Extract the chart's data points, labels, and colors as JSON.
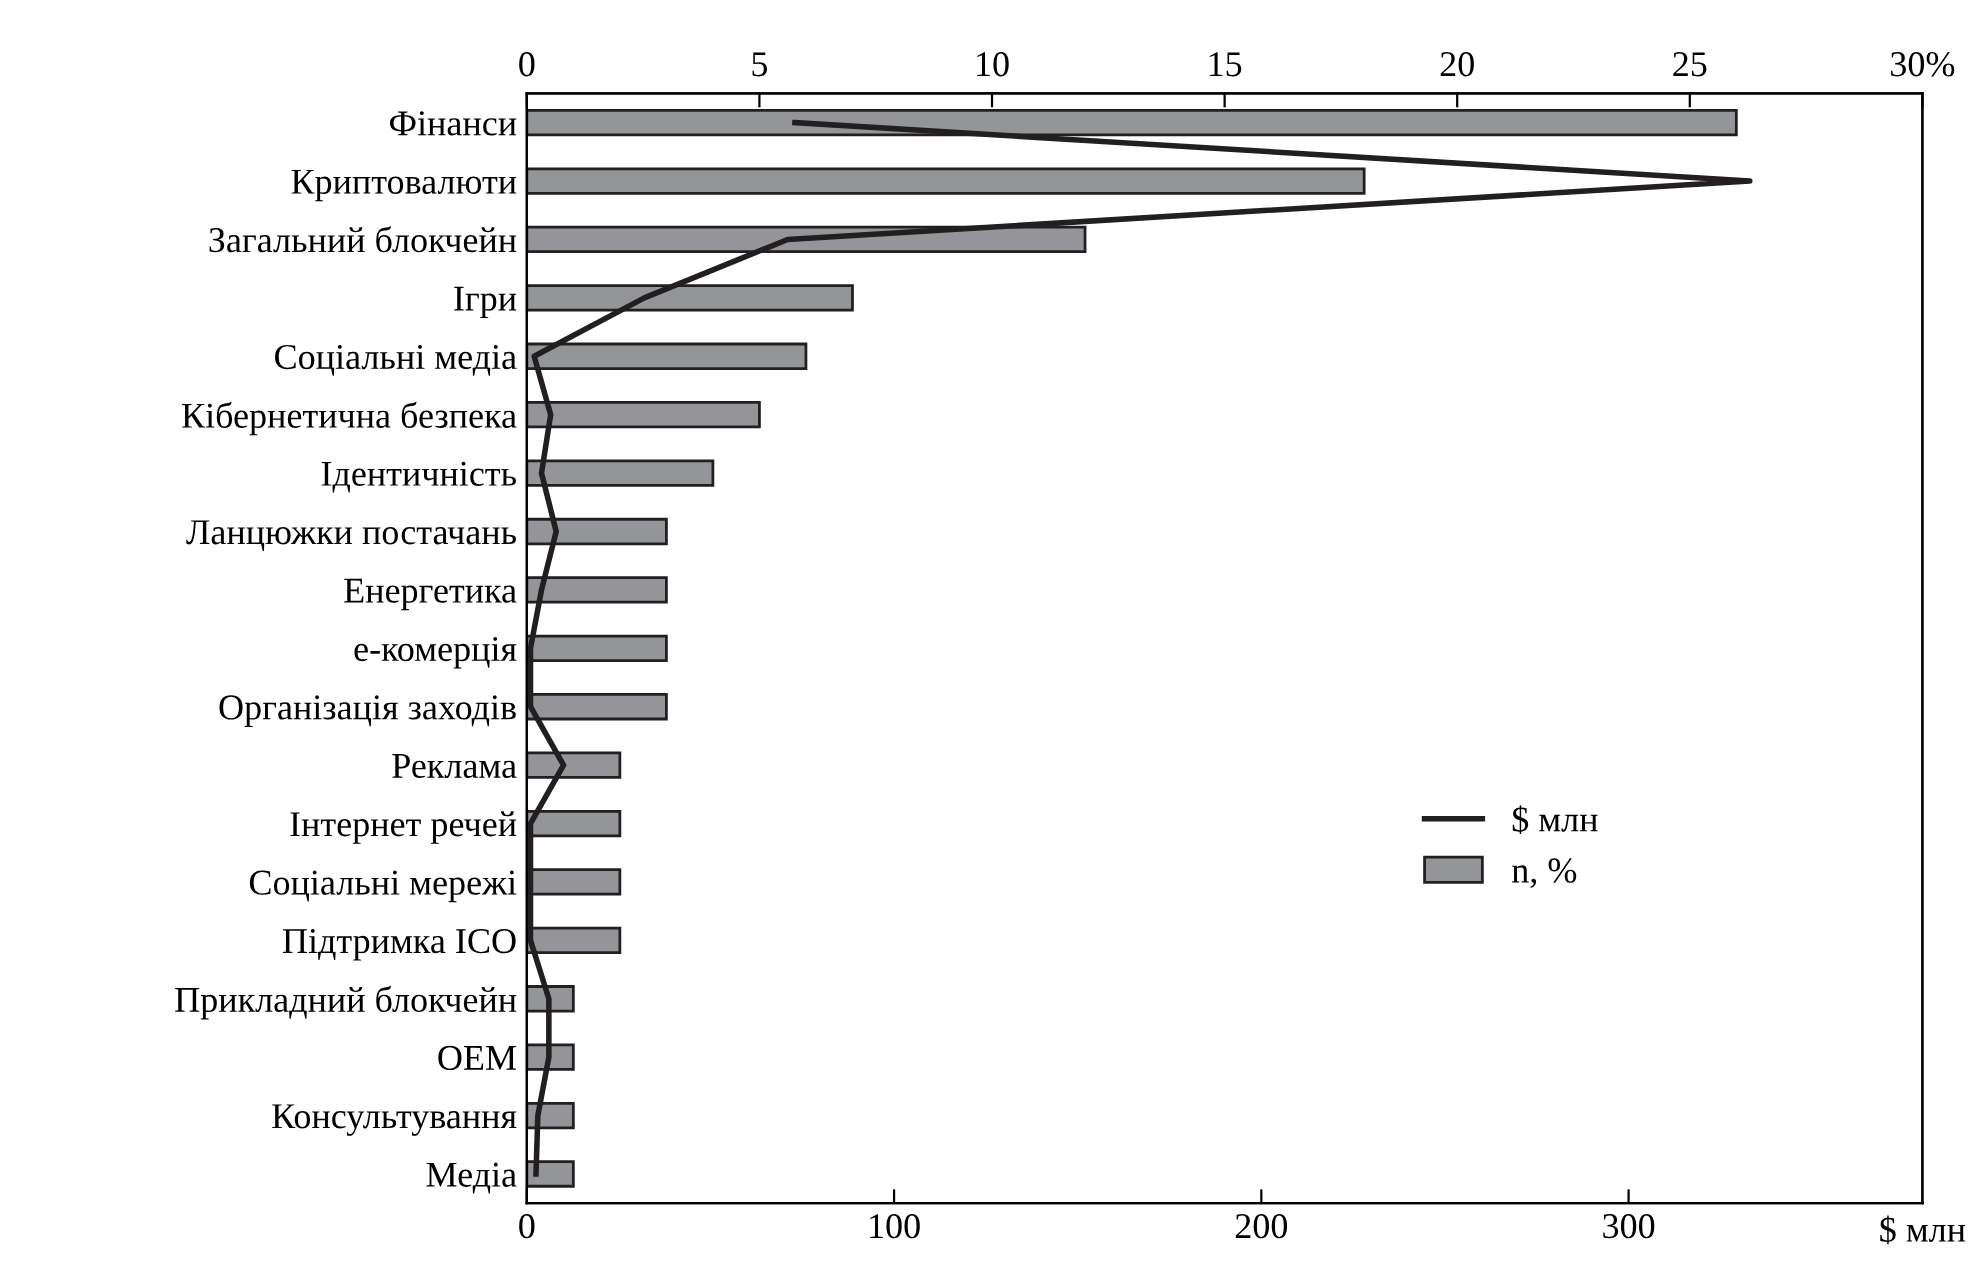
{
  "chart_data": {
    "type": "bar",
    "orientation": "horizontal",
    "xlabel": "$ млн",
    "categories": [
      "Фінанси",
      "Криптовалюти",
      "Загальний блокчейн",
      "Ігри",
      "Соціальні медіа",
      "Кібернетична безпека",
      "Ідентичність",
      "Ланцюжки постачань",
      "Енергетика",
      "е-комерція",
      "Організація заходів",
      "Реклама",
      "Інтернет речей",
      "Соціальні мережі",
      "Підтримка ICO",
      "Прикладний блокчейн",
      "OEM",
      "Консультування",
      "Медіа"
    ],
    "series": [
      {
        "name": "$ млн",
        "type": "line",
        "color": "#231f20",
        "values": [
          73,
          333,
          71,
          32,
          2,
          6.5,
          4,
          8,
          4,
          1,
          1,
          10,
          1,
          1,
          1,
          6,
          6,
          3,
          2.5
        ]
      },
      {
        "name": "n, %",
        "axis": "x2",
        "color": "#939598",
        "values": [
          26,
          18,
          12,
          7,
          6,
          5,
          4,
          3,
          3,
          3,
          3,
          2,
          2,
          2,
          2,
          1,
          1,
          1,
          1
        ]
      }
    ],
    "xlim": [
      0,
      380
    ],
    "xticks": [
      0,
      100,
      200,
      300
    ],
    "x2lim": [
      0,
      30
    ],
    "x2ticks": [
      0,
      5,
      10,
      15,
      20,
      25,
      {
        "value": 30,
        "label": "30%"
      }
    ],
    "legend": "right",
    "grid": false
  }
}
